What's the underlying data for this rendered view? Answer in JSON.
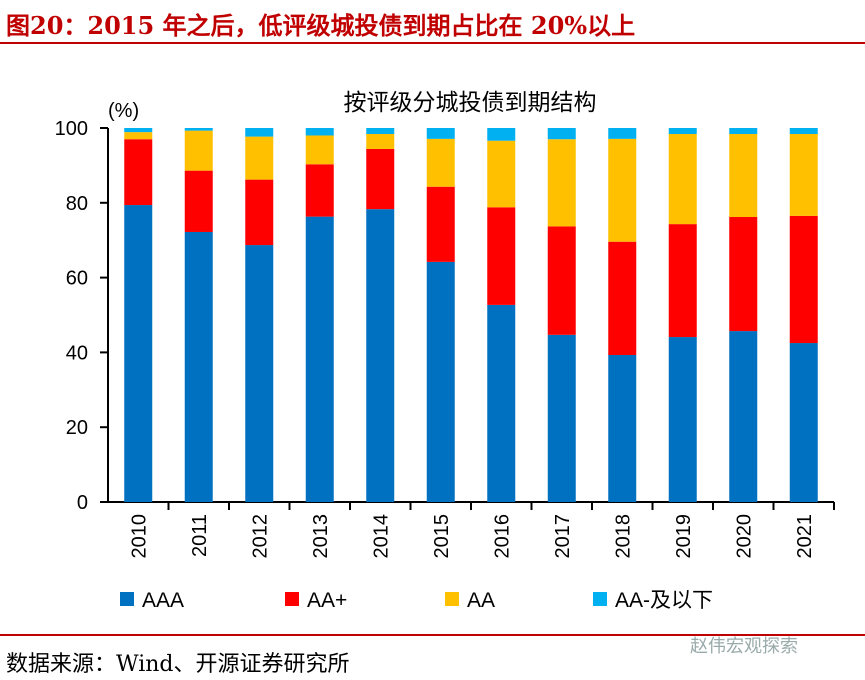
{
  "title": "图20：2015 年之后，低评级城投债到期占比在 20%以上",
  "source": "数据来源：Wind、开源证券研究所",
  "watermark": "赵伟宏观探索",
  "chart_data": {
    "type": "bar",
    "stacked": true,
    "title": "按评级分城投债到期结构",
    "ylabel": "(%)",
    "ylim": [
      0,
      100
    ],
    "yticks": [
      0,
      20,
      40,
      60,
      80,
      100
    ],
    "grid": false,
    "legend": "bottom",
    "categories": [
      "2010",
      "2011",
      "2012",
      "2013",
      "2014",
      "2015",
      "2016",
      "2017",
      "2018",
      "2019",
      "2020",
      "2021"
    ],
    "series": [
      {
        "name": "AAA",
        "color": "#0070c0",
        "values": [
          79.4,
          72.2,
          68.7,
          76.3,
          78.3,
          64.2,
          52.7,
          44.7,
          39.3,
          44.1,
          45.7,
          42.5
        ]
      },
      {
        "name": "AA+",
        "color": "#ff0000",
        "values": [
          17.6,
          16.4,
          17.5,
          14.0,
          16.1,
          20.1,
          26.1,
          29.0,
          30.3,
          30.2,
          30.5,
          34.0
        ]
      },
      {
        "name": "AA",
        "color": "#ffc000",
        "values": [
          1.9,
          10.7,
          11.5,
          7.7,
          4.0,
          12.8,
          17.8,
          23.3,
          27.5,
          24.1,
          22.2,
          21.9
        ]
      },
      {
        "name": "AA-及以下",
        "color": "#00b0f0",
        "values": [
          1.1,
          0.7,
          2.3,
          2.0,
          1.6,
          2.9,
          3.4,
          3.0,
          2.9,
          1.6,
          1.6,
          1.6
        ]
      }
    ]
  }
}
